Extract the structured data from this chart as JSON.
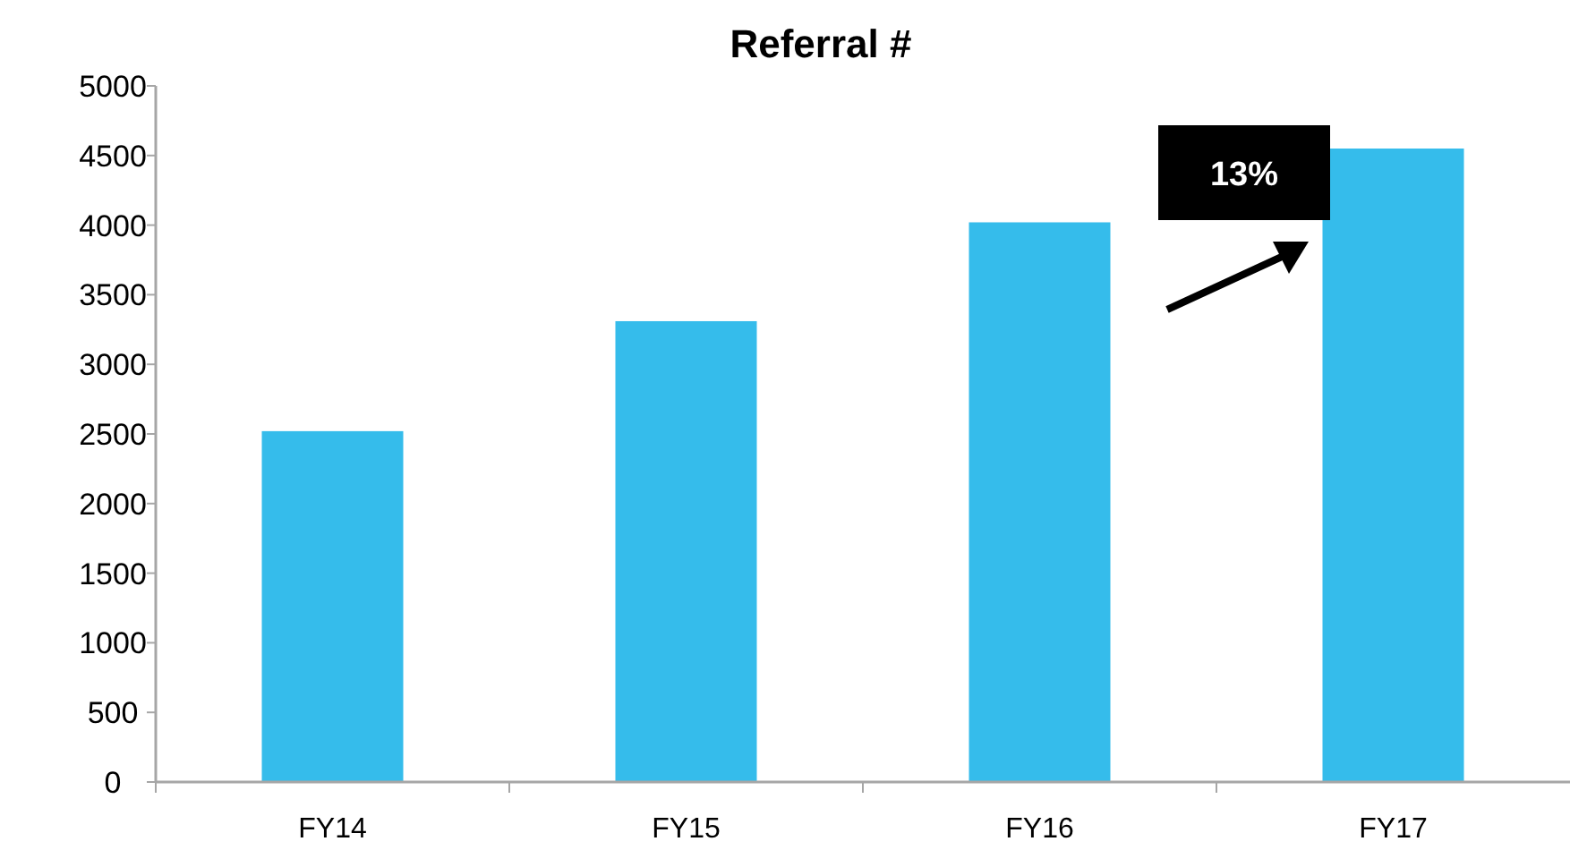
{
  "chart_data": {
    "type": "bar",
    "title": "Referral #",
    "categories": [
      "FY14",
      "FY15",
      "FY16",
      "FY17"
    ],
    "values": [
      2520,
      3310,
      4020,
      4550
    ],
    "color": "#35bceb",
    "ylim": [
      0,
      5000
    ],
    "yticks": [
      0,
      500,
      1000,
      1500,
      2000,
      2500,
      3000,
      3500,
      4000,
      4500,
      5000
    ],
    "annotations": [
      "13%"
    ]
  }
}
